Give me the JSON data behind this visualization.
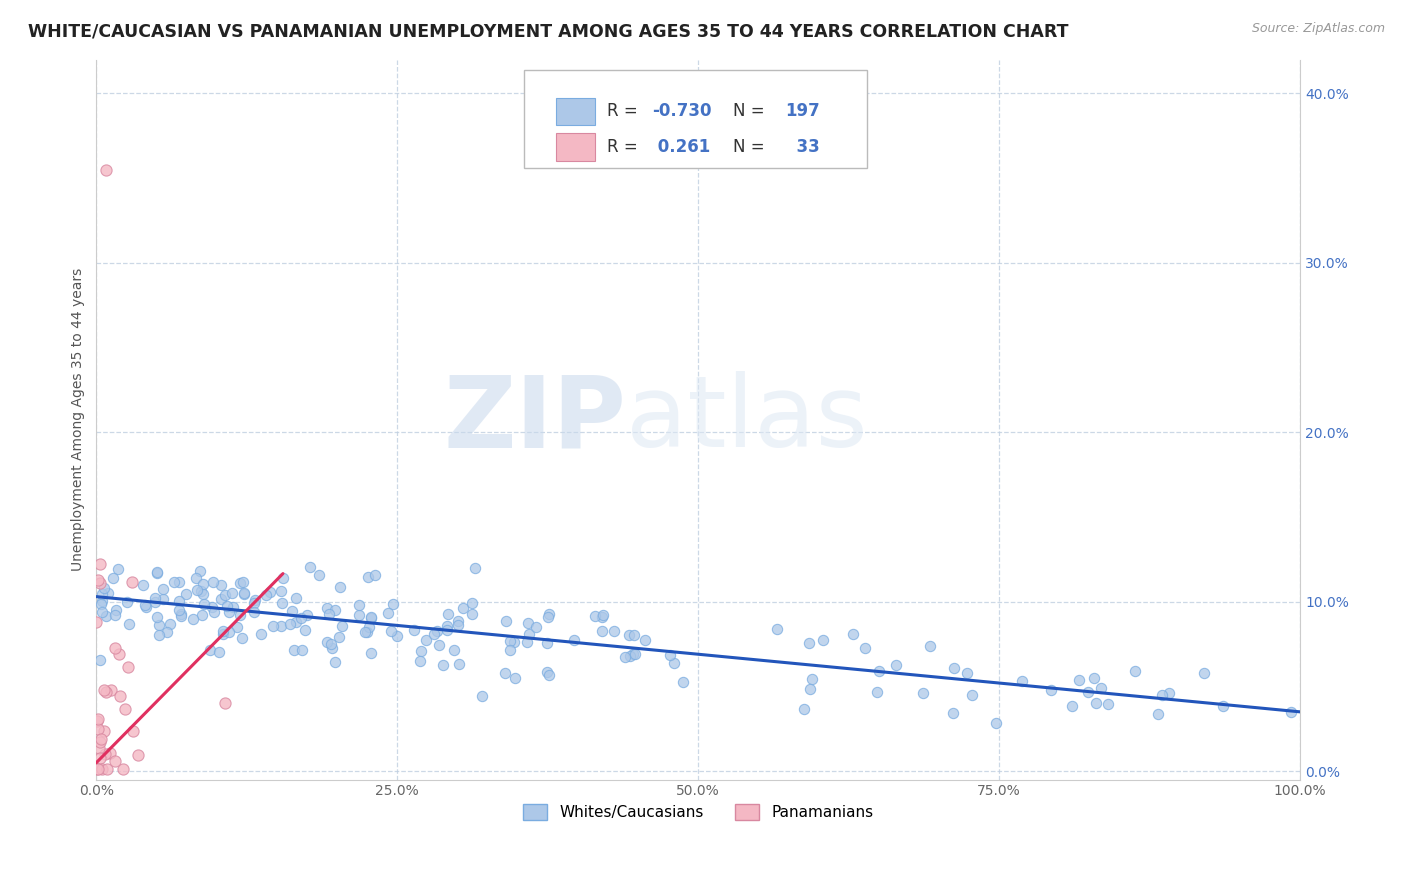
{
  "title": "WHITE/CAUCASIAN VS PANAMANIAN UNEMPLOYMENT AMONG AGES 35 TO 44 YEARS CORRELATION CHART",
  "source_text": "Source: ZipAtlas.com",
  "ylabel": "Unemployment Among Ages 35 to 44 years",
  "watermark_zip": "ZIP",
  "watermark_atlas": "atlas",
  "xlim": [
    0,
    1.0
  ],
  "ylim": [
    -0.005,
    0.42
  ],
  "x_ticks": [
    0.0,
    0.25,
    0.5,
    0.75,
    1.0
  ],
  "x_tick_labels": [
    "0.0%",
    "25.0%",
    "50.0%",
    "75.0%",
    "100.0%"
  ],
  "y_ticks": [
    0.0,
    0.1,
    0.2,
    0.3,
    0.4
  ],
  "y_tick_labels": [
    "0.0%",
    "10.0%",
    "20.0%",
    "30.0%",
    "40.0%"
  ],
  "blue_R": -0.73,
  "blue_N": 197,
  "pink_R": 0.261,
  "pink_N": 33,
  "blue_scatter_color": "#adc8e8",
  "pink_scatter_color": "#f4b8c4",
  "blue_line_color": "#2255bb",
  "pink_line_color": "#e03060",
  "legend_label_blue": "Whites/Caucasians",
  "legend_label_pink": "Panamanians",
  "title_fontsize": 12.5,
  "axis_fontsize": 10,
  "tick_fontsize": 10,
  "background_color": "#ffffff",
  "grid_color": "#c0cfe0",
  "blue_line_intercept": 0.103,
  "blue_line_slope": -0.068,
  "pink_line_intercept": 0.005,
  "pink_line_slope": 0.72,
  "pink_line_xmax": 0.155
}
